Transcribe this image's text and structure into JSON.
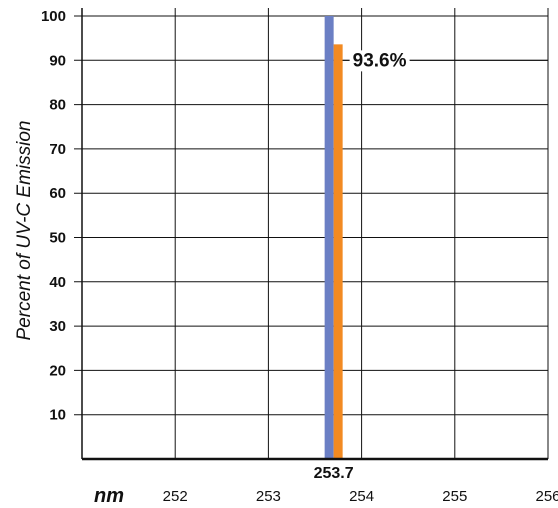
{
  "chart_data": {
    "type": "bar",
    "ylabel": "Percent of UV-C Emission",
    "x_unit_label": "nm",
    "ylim": [
      0,
      100
    ],
    "xlim": [
      251,
      256
    ],
    "y_ticks": [
      10,
      20,
      30,
      40,
      50,
      60,
      70,
      80,
      90,
      100
    ],
    "x_ticks": [
      252,
      253,
      254,
      255,
      256
    ],
    "grid": true,
    "peak_wavelength": "253.7",
    "series": [
      {
        "x": 253.7,
        "value": 100,
        "color": "#6b7fc4"
      },
      {
        "x": 253.7,
        "value": 93.6,
        "color": "#f28a22"
      }
    ],
    "annotation": "93.6%"
  }
}
